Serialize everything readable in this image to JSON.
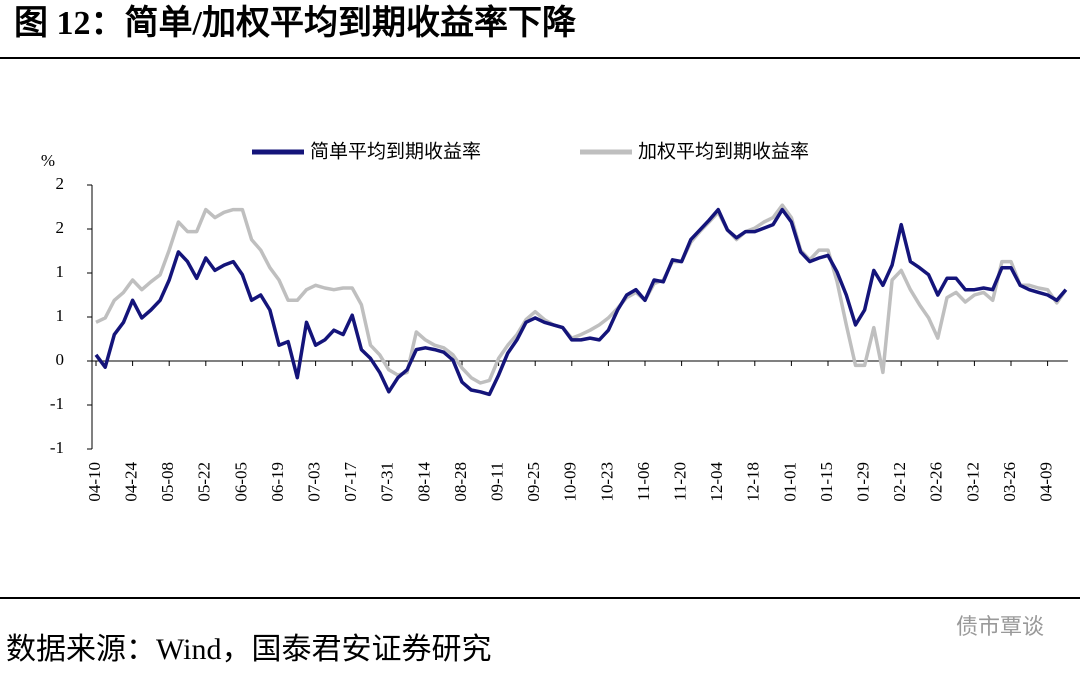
{
  "chart_data": {
    "type": "line",
    "title": "图 12：简单/加权平均到期收益率下降",
    "y_label": "%",
    "source": "数据来源：Wind，国泰君安证券研究",
    "watermark": "债市覃谈",
    "categories": [
      "04-10",
      null,
      null,
      null,
      "04-24",
      null,
      null,
      null,
      "05-08",
      null,
      null,
      null,
      "05-22",
      null,
      null,
      null,
      "06-05",
      null,
      null,
      null,
      "06-19",
      null,
      null,
      null,
      "07-03",
      null,
      null,
      null,
      "07-17",
      null,
      null,
      null,
      "07-31",
      null,
      null,
      null,
      "08-14",
      null,
      null,
      null,
      "08-28",
      null,
      null,
      null,
      "09-11",
      null,
      null,
      null,
      "09-25",
      null,
      null,
      null,
      "10-09",
      null,
      null,
      null,
      "10-23",
      null,
      null,
      null,
      "11-06",
      null,
      null,
      null,
      "11-20",
      null,
      null,
      null,
      "12-04",
      null,
      null,
      null,
      "12-18",
      null,
      null,
      null,
      "01-01",
      null,
      null,
      null,
      "01-15",
      null,
      null,
      null,
      "01-29",
      null,
      null,
      null,
      "02-12",
      null,
      null,
      null,
      "02-26",
      null,
      null,
      null,
      "03-12",
      null,
      null,
      null,
      "03-26",
      null,
      null,
      null,
      "04-09",
      null,
      null
    ],
    "series": [
      {
        "name": "简单平均到期收益率",
        "color": "#14147a",
        "values": [
          0.07,
          -0.07,
          0.3,
          0.44,
          0.69,
          0.49,
          0.58,
          0.69,
          0.92,
          1.24,
          1.13,
          0.94,
          1.17,
          1.03,
          1.09,
          1.13,
          0.98,
          0.69,
          0.75,
          0.58,
          0.18,
          0.22,
          -0.19,
          0.44,
          0.18,
          0.24,
          0.35,
          0.3,
          0.52,
          0.13,
          0.03,
          -0.13,
          -0.35,
          -0.19,
          -0.1,
          0.13,
          0.15,
          0.13,
          0.1,
          0.01,
          -0.24,
          -0.33,
          -0.35,
          -0.38,
          -0.16,
          0.09,
          0.24,
          0.44,
          0.49,
          0.44,
          0.41,
          0.38,
          0.24,
          0.24,
          0.26,
          0.24,
          0.35,
          0.58,
          0.75,
          0.81,
          0.69,
          0.92,
          0.9,
          1.15,
          1.13,
          1.38,
          1.49,
          1.6,
          1.72,
          1.49,
          1.4,
          1.47,
          1.47,
          1.51,
          1.55,
          1.72,
          1.58,
          1.24,
          1.13,
          1.17,
          1.2,
          1.01,
          0.75,
          0.41,
          0.58,
          1.03,
          0.86,
          1.09,
          1.55,
          1.13,
          1.06,
          0.98,
          0.75,
          0.94,
          0.94,
          0.81,
          0.81,
          0.83,
          0.81,
          1.06,
          1.06,
          0.86,
          0.81,
          0.78,
          0.75,
          0.69,
          0.81
        ]
      },
      {
        "name": "加权平均到期收益率",
        "color": "#bfbfbf",
        "values": [
          0.44,
          0.49,
          0.69,
          0.78,
          0.92,
          0.81,
          0.9,
          0.98,
          1.26,
          1.58,
          1.47,
          1.47,
          1.72,
          1.63,
          1.69,
          1.72,
          1.72,
          1.38,
          1.26,
          1.06,
          0.92,
          0.69,
          0.69,
          0.81,
          0.86,
          0.83,
          0.81,
          0.83,
          0.83,
          0.64,
          0.18,
          0.07,
          -0.1,
          -0.16,
          -0.13,
          0.33,
          0.24,
          0.18,
          0.15,
          0.07,
          -0.08,
          -0.19,
          -0.25,
          -0.22,
          0.03,
          0.18,
          0.3,
          0.47,
          0.56,
          0.47,
          0.41,
          0.38,
          0.26,
          0.3,
          0.35,
          0.41,
          0.49,
          0.6,
          0.72,
          0.78,
          0.69,
          0.88,
          0.92,
          1.13,
          1.13,
          1.35,
          1.47,
          1.58,
          1.69,
          1.49,
          1.38,
          1.47,
          1.51,
          1.58,
          1.63,
          1.77,
          1.63,
          1.26,
          1.15,
          1.26,
          1.26,
          0.9,
          0.41,
          -0.05,
          -0.05,
          0.38,
          -0.13,
          0.92,
          1.03,
          0.81,
          0.64,
          0.49,
          0.26,
          0.72,
          0.78,
          0.67,
          0.75,
          0.78,
          0.69,
          1.13,
          1.13,
          0.86,
          0.86,
          0.83,
          0.81,
          0.66,
          0.81
        ]
      }
    ],
    "ylim": [
      -1,
      2
    ],
    "yticks": [
      {
        "value": -1,
        "label": "-1"
      },
      {
        "value": -0.5,
        "label": "-1"
      },
      {
        "value": 0,
        "label": "0"
      },
      {
        "value": 0.5,
        "label": "1"
      },
      {
        "value": 1,
        "label": "1"
      },
      {
        "value": 1.5,
        "label": "2"
      },
      {
        "value": 2,
        "label": "2"
      }
    ],
    "grid": false
  }
}
